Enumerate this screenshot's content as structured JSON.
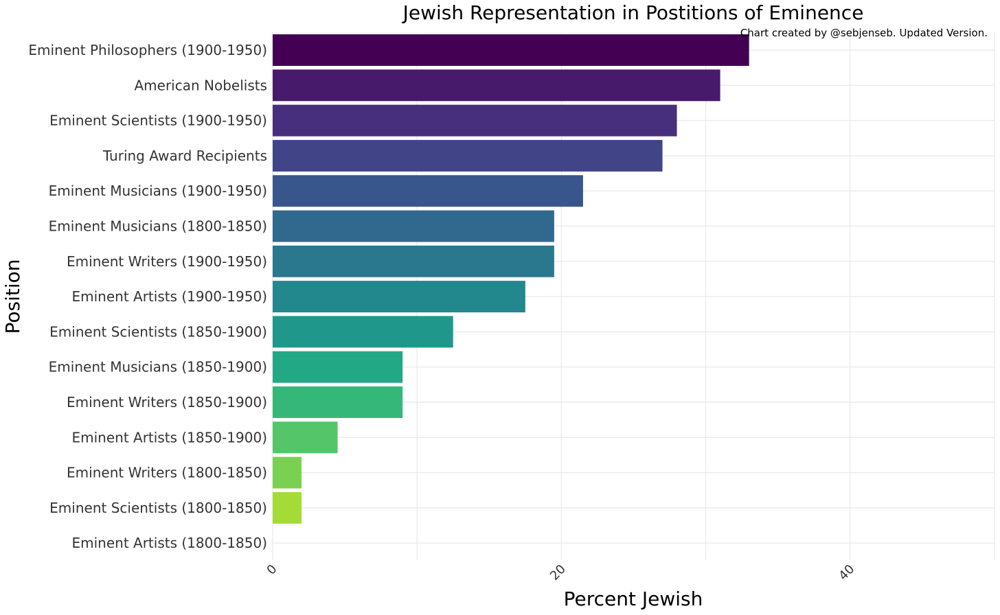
{
  "chart_data": {
    "type": "bar",
    "orientation": "horizontal",
    "title": "Jewish Representation in Postitions of Eminence",
    "caption": "Chart created by @sebjenseb. Updated Version.",
    "xlabel": "Percent Jewish",
    "ylabel": "Position",
    "xlim": [
      0,
      50
    ],
    "x_ticks": [
      0,
      20,
      40
    ],
    "grid": true,
    "categories": [
      "Eminent Philosophers (1900-1950)",
      "American Nobelists",
      "Eminent Scientists (1900-1950)",
      "Turing Award Recipients",
      "Eminent Musicians (1900-1950)",
      "Eminent Musicians (1800-1850)",
      "Eminent Writers (1900-1950)",
      "Eminent Artists (1900-1950)",
      "Eminent Scientists (1850-1900)",
      "Eminent Musicians (1850-1900)",
      "Eminent Writers (1850-1900)",
      "Eminent Artists (1850-1900)",
      "Eminent Writers (1800-1850)",
      "Eminent Scientists (1800-1850)",
      "Eminent Artists (1800-1850)"
    ],
    "values": [
      33,
      31,
      28,
      27,
      21.5,
      19.5,
      19.5,
      17.5,
      12.5,
      9,
      9,
      4.5,
      2,
      2,
      0
    ],
    "colors": [
      "#440154",
      "#481a6c",
      "#472f7d",
      "#414487",
      "#39568c",
      "#31688e",
      "#2a788e",
      "#23888e",
      "#1f988b",
      "#22a884",
      "#35b779",
      "#54c568",
      "#7ad151",
      "#a5db36",
      "#d2e21b"
    ]
  }
}
